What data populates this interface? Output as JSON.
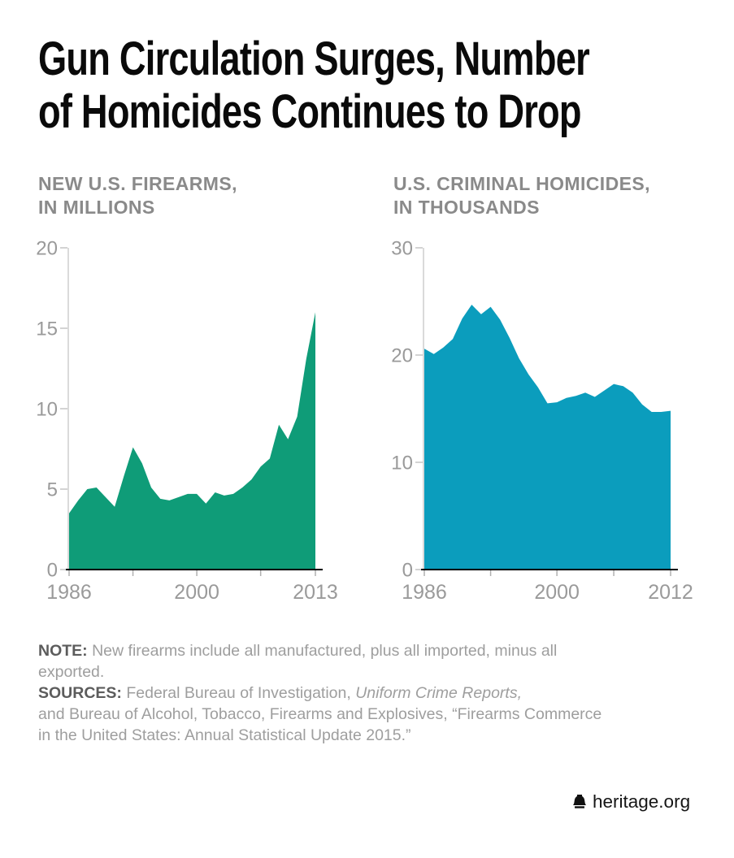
{
  "title": {
    "line1": "Gun Circulation Surges, Number",
    "line2": "of Homicides Continues to Drop"
  },
  "chart_data": [
    {
      "type": "area",
      "title": "NEW U.S. FIREARMS, IN MILLIONS",
      "header_line1": "NEW U.S. FIREARMS,",
      "header_line2": "IN MILLIONS",
      "color": "#0f9c78",
      "ylim": [
        0,
        20
      ],
      "yticks": [
        0,
        5,
        10,
        15,
        20
      ],
      "xticks": [
        {
          "year": 1986,
          "label": "1986"
        },
        {
          "year": 1993,
          "label": ""
        },
        {
          "year": 2000,
          "label": "2000"
        },
        {
          "year": 2007,
          "label": ""
        },
        {
          "year": 2013,
          "label": "2013"
        }
      ],
      "years": [
        1986,
        1987,
        1988,
        1989,
        1990,
        1991,
        1992,
        1993,
        1994,
        1995,
        1996,
        1997,
        1998,
        1999,
        2000,
        2001,
        2002,
        2003,
        2004,
        2005,
        2006,
        2007,
        2008,
        2009,
        2010,
        2011,
        2012,
        2013
      ],
      "values": [
        3.5,
        4.3,
        5.0,
        5.1,
        4.5,
        3.9,
        5.8,
        7.6,
        6.6,
        5.1,
        4.4,
        4.3,
        4.5,
        4.7,
        4.7,
        4.1,
        4.8,
        4.6,
        4.7,
        5.1,
        5.6,
        6.4,
        6.9,
        9.0,
        8.1,
        9.5,
        13.1,
        16.0
      ],
      "grid": false,
      "legend": "none"
    },
    {
      "type": "area",
      "title": "U.S. CRIMINAL HOMICIDES, IN THOUSANDS",
      "header_line1": "U.S. CRIMINAL HOMICIDES,",
      "header_line2": "IN THOUSANDS",
      "color": "#0b9dbd",
      "ylim": [
        0,
        30
      ],
      "yticks": [
        0,
        10,
        20,
        30
      ],
      "xticks": [
        {
          "year": 1986,
          "label": "1986"
        },
        {
          "year": 1993,
          "label": ""
        },
        {
          "year": 2000,
          "label": "2000"
        },
        {
          "year": 2006,
          "label": ""
        },
        {
          "year": 2012,
          "label": "2012"
        }
      ],
      "years": [
        1986,
        1987,
        1988,
        1989,
        1990,
        1991,
        1992,
        1993,
        1994,
        1995,
        1996,
        1997,
        1998,
        1999,
        2000,
        2001,
        2002,
        2003,
        2004,
        2005,
        2006,
        2007,
        2008,
        2009,
        2010,
        2011,
        2012
      ],
      "values": [
        20.6,
        20.1,
        20.7,
        21.5,
        23.4,
        24.7,
        23.8,
        24.5,
        23.3,
        21.6,
        19.7,
        18.2,
        17.0,
        15.5,
        15.6,
        16.0,
        16.2,
        16.5,
        16.1,
        16.7,
        17.3,
        17.1,
        16.5,
        15.4,
        14.7,
        14.7,
        14.8
      ],
      "grid": false,
      "legend": "none"
    }
  ],
  "note": {
    "label": "NOTE:",
    "text": "New firearms include all manufactured, plus all imported, minus all exported."
  },
  "sources": {
    "label": "SOURCES:",
    "pre": "Federal Bureau of Investigation, ",
    "italic": "Uniform Crime Reports,",
    "post": "and Bureau of Alcohol, Tobacco, Firearms and Explosives, “Firearms Commerce in the United States: Annual Statistical Update 2015.”"
  },
  "footer": {
    "brand": "heritage.org"
  }
}
